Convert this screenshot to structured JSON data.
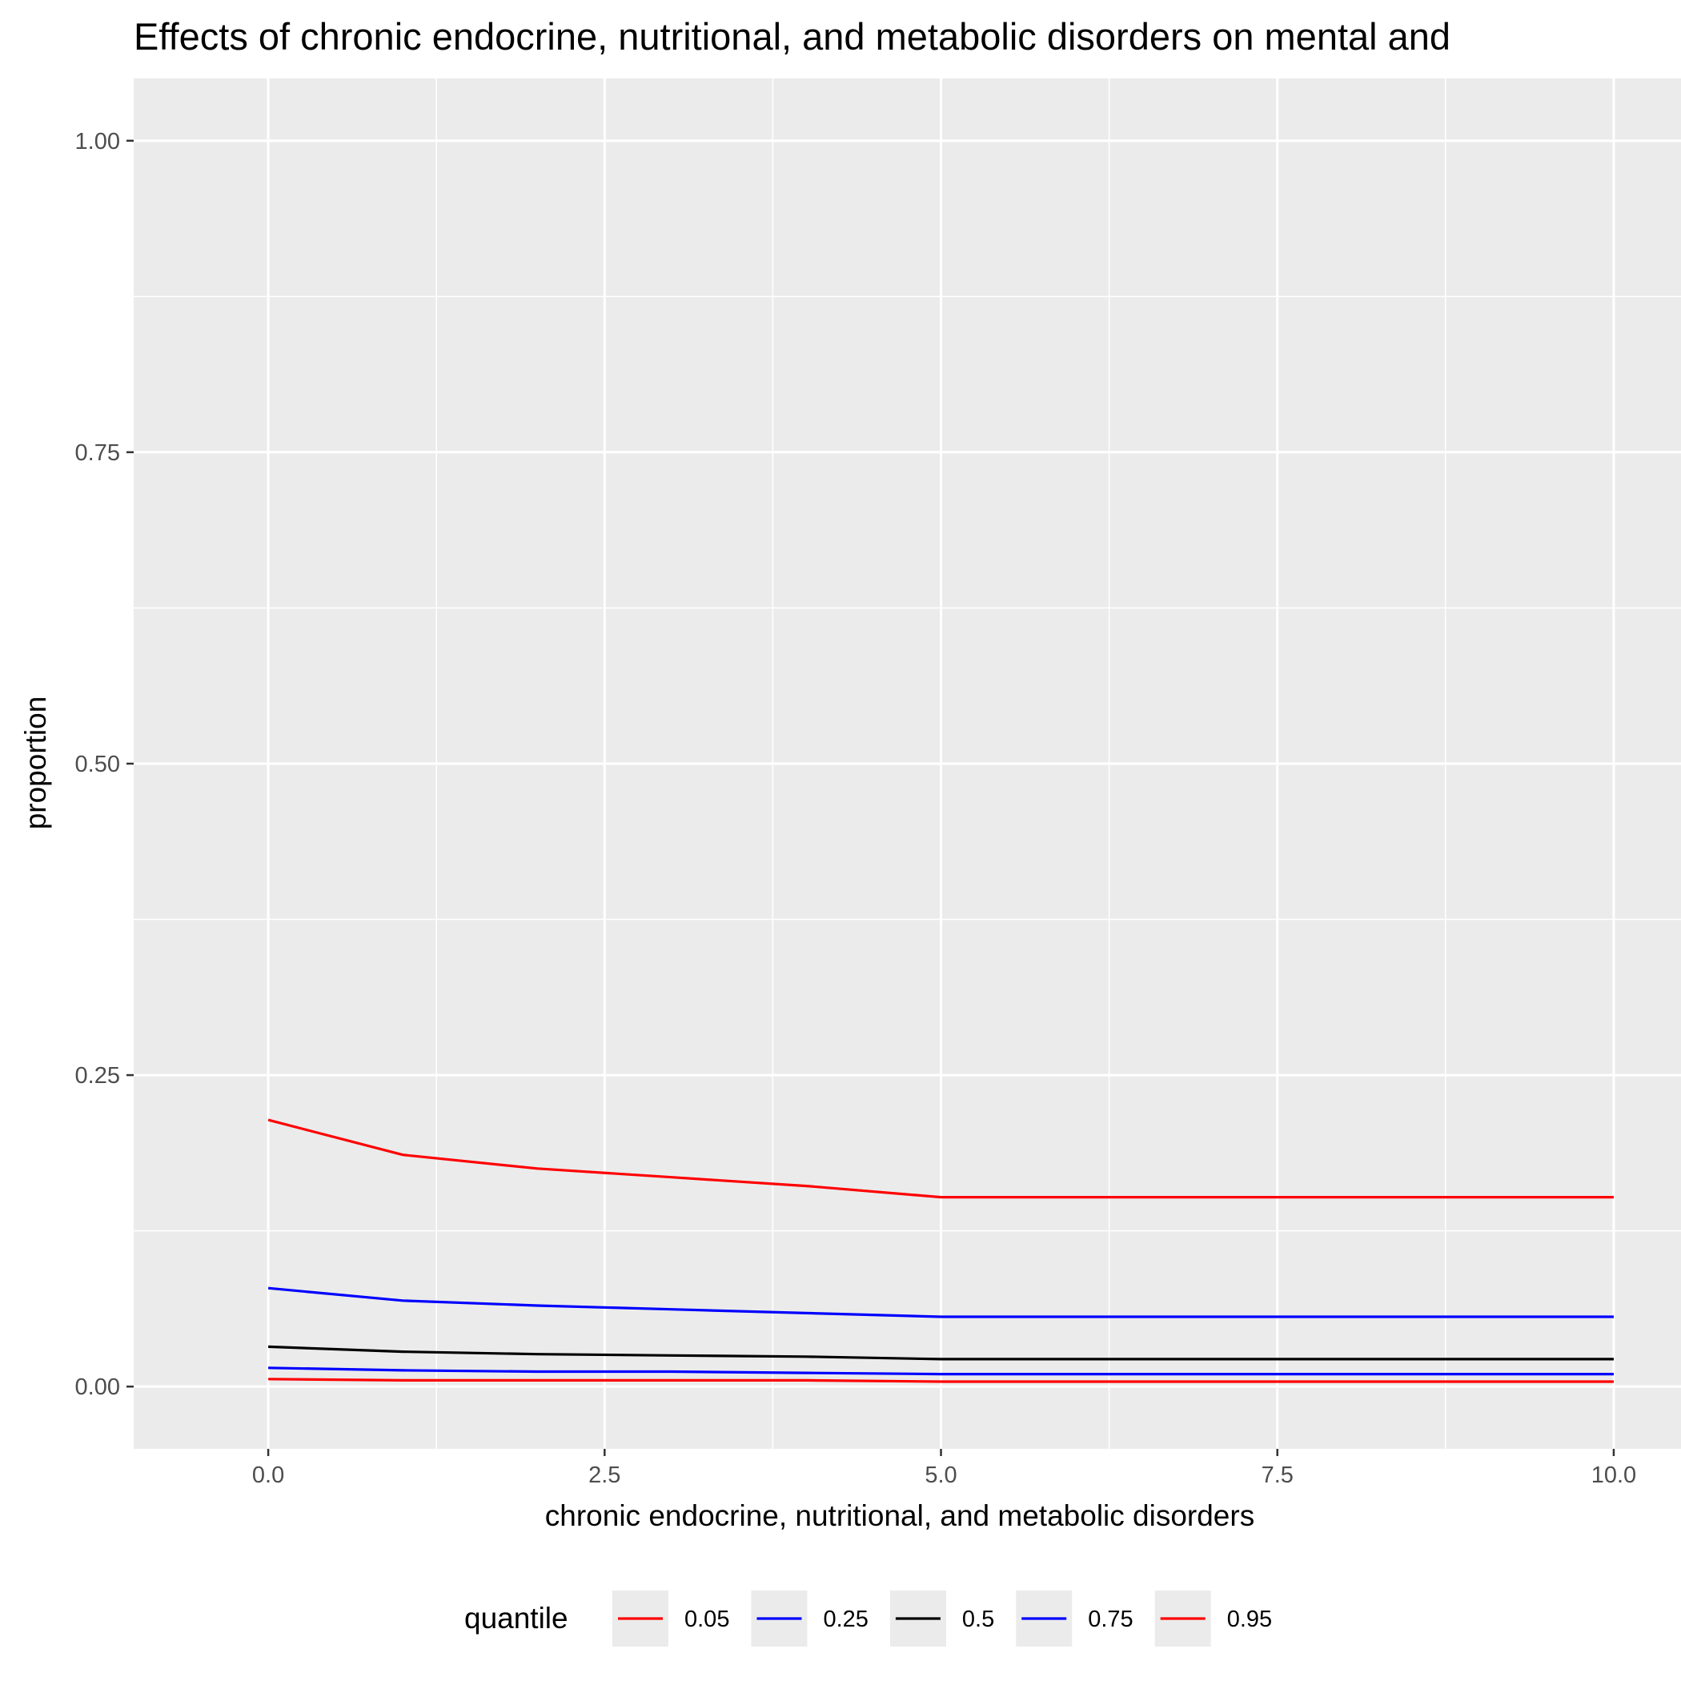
{
  "chart_data": {
    "type": "line",
    "title": "Effects of chronic endocrine, nutritional, and metabolic disorders on mental and",
    "xlabel": "chronic endocrine, nutritional, and metabolic disorders",
    "ylabel": "proportion",
    "xlim": [
      -1,
      10.5
    ],
    "ylim": [
      -0.05,
      1.05
    ],
    "x_ticks": [
      0,
      2.5,
      5,
      7.5,
      10
    ],
    "x_tick_labels": [
      "0.0",
      "2.5",
      "5.0",
      "7.5",
      "10.0"
    ],
    "y_ticks": [
      0,
      0.25,
      0.5,
      0.75,
      1
    ],
    "y_tick_labels": [
      "0.00",
      "0.25",
      "0.50",
      "0.75",
      "1.00"
    ],
    "grid": true,
    "legend_title": "quantile",
    "legend_position": "bottom",
    "x": [
      0,
      1,
      2,
      3,
      4,
      5,
      6,
      7,
      8,
      9,
      10
    ],
    "series": [
      {
        "name": "0.05",
        "color": "#ff0000",
        "values": [
          0.006,
          0.005,
          0.005,
          0.005,
          0.005,
          0.004,
          0.004,
          0.004,
          0.004,
          0.004,
          0.004
        ]
      },
      {
        "name": "0.25",
        "color": "#0000ff",
        "values": [
          0.015,
          0.013,
          0.012,
          0.012,
          0.011,
          0.01,
          0.01,
          0.01,
          0.01,
          0.01,
          0.01
        ]
      },
      {
        "name": "0.5",
        "color": "#000000",
        "values": [
          0.032,
          0.028,
          0.026,
          0.025,
          0.024,
          0.022,
          0.022,
          0.022,
          0.022,
          0.022,
          0.022
        ]
      },
      {
        "name": "0.75",
        "color": "#0000ff",
        "values": [
          0.079,
          0.069,
          0.065,
          0.062,
          0.059,
          0.056,
          0.056,
          0.056,
          0.056,
          0.056,
          0.056
        ]
      },
      {
        "name": "0.95",
        "color": "#ff0000",
        "values": [
          0.214,
          0.186,
          0.175,
          0.168,
          0.161,
          0.152,
          0.152,
          0.152,
          0.152,
          0.152,
          0.152
        ]
      }
    ]
  }
}
